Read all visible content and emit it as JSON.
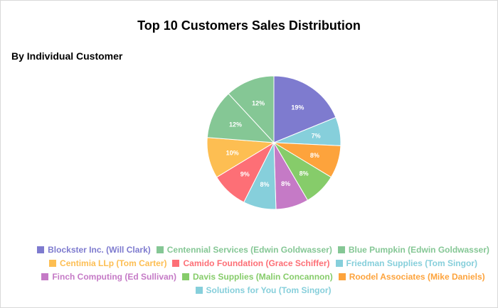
{
  "chart_data": {
    "type": "pie",
    "title": "Top 10 Customers Sales Distribution",
    "subtitle": "By Individual Customer",
    "categories": [
      "Blockster Inc. (Will Clark)",
      "Centennial Services (Edwin Goldwasser)",
      "Blue Pumpkin (Edwin Goldwasser)",
      "Centimia LLp (Tom Carter)",
      "Camido Foundation (Grace Schiffer)",
      "Friedman Supplies (Tom Singor)",
      "Finch Computing (Ed Sullivan)",
      "Davis Supplies (Malin Concannon)",
      "Roodel Associates (Mike Daniels)",
      "Solutions for You (Tom Singor)"
    ],
    "values": [
      19,
      12,
      12,
      10,
      9,
      8,
      8,
      8,
      8,
      7
    ],
    "data_labels": [
      "19%",
      "12%",
      "12%",
      "10%",
      "9%",
      "8%",
      "8%",
      "8%",
      "8%",
      "7%"
    ],
    "colors": [
      "#7e7bcf",
      "#85c795",
      "#85c795",
      "#fdbe52",
      "#fd6f76",
      "#86cfdb",
      "#c57ac6",
      "#86cc6a",
      "#fda33c",
      "#86cfdb"
    ],
    "legend_position": "bottom",
    "legend_rows": [
      [
        0,
        1,
        2
      ],
      [
        3,
        4,
        5
      ],
      [
        6,
        7,
        8
      ],
      [
        9
      ]
    ]
  }
}
